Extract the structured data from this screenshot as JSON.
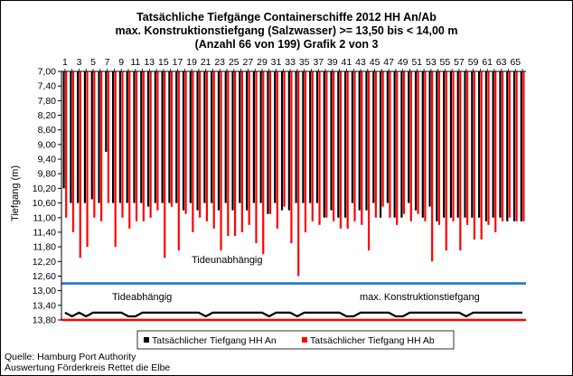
{
  "chart_data": {
    "type": "bar",
    "title_lines": [
      "Tatsächliche Tiefgänge Containerschiffe  2012 HH An/Ab",
      "max. Konstruktionstiefgang  (Salzwasser)  >= 13,50 bis < 14,00 m",
      "(Anzahl 66 von 199) Grafik 2 von 3"
    ],
    "ylabel": "Tiefgang (m)",
    "ylim": [
      7.0,
      13.8
    ],
    "y_inverted": true,
    "y_ticks": [
      "7,00",
      "7,40",
      "7,80",
      "8,20",
      "8,60",
      "9,00",
      "9,40",
      "9,80",
      "10,20",
      "10,60",
      "11,00",
      "11,40",
      "11,80",
      "12,20",
      "12,60",
      "13,00",
      "13,40",
      "13,80"
    ],
    "x_ticks": [
      "1",
      "3",
      "5",
      "7",
      "9",
      "11",
      "13",
      "15",
      "17",
      "19",
      "21",
      "23",
      "25",
      "27",
      "29",
      "31",
      "33",
      "35",
      "37",
      "39",
      "41",
      "43",
      "45",
      "47",
      "49",
      "51",
      "53",
      "55",
      "57",
      "59",
      "61",
      "63",
      "65"
    ],
    "categories": [
      1,
      2,
      3,
      4,
      5,
      6,
      7,
      8,
      9,
      10,
      11,
      12,
      13,
      14,
      15,
      16,
      17,
      18,
      19,
      20,
      21,
      22,
      23,
      24,
      25,
      26,
      27,
      28,
      29,
      30,
      31,
      32,
      33,
      34,
      35,
      36,
      37,
      38,
      39,
      40,
      41,
      42,
      43,
      44,
      45,
      46,
      47,
      48,
      49,
      50,
      51,
      52,
      53,
      54,
      55,
      56,
      57,
      58,
      59,
      60,
      61,
      62,
      63,
      64,
      65,
      66
    ],
    "series": [
      {
        "name": "Tatsächlicher Tiefgang HH An",
        "color": "#000000",
        "values": [
          10.2,
          10.6,
          10.6,
          10.6,
          10.5,
          10.6,
          9.2,
          10.6,
          10.6,
          10.6,
          10.6,
          10.6,
          10.7,
          10.6,
          10.6,
          10.6,
          10.6,
          10.8,
          10.6,
          10.8,
          10.6,
          10.6,
          10.8,
          10.6,
          10.8,
          10.6,
          10.8,
          10.6,
          10.6,
          10.9,
          10.6,
          10.8,
          10.8,
          10.6,
          10.6,
          10.6,
          10.6,
          11.0,
          10.8,
          11.0,
          11.0,
          10.6,
          10.8,
          10.8,
          10.6,
          11.0,
          10.6,
          11.0,
          11.0,
          10.6,
          10.8,
          11.0,
          10.7,
          11.1,
          11.0,
          11.0,
          11.0,
          11.0,
          11.0,
          11.0,
          11.1,
          11.0,
          11.0,
          11.1,
          11.1,
          11.1
        ]
      },
      {
        "name": "Tatsächlicher Tiefgang HH Ab",
        "color": "#ff0000",
        "values": [
          11.0,
          11.4,
          12.1,
          11.8,
          11.0,
          11.1,
          10.6,
          11.8,
          11.0,
          11.3,
          11.1,
          11.1,
          11.0,
          10.8,
          12.1,
          10.7,
          11.9,
          10.9,
          11.4,
          11.0,
          11.1,
          11.3,
          11.9,
          11.5,
          11.5,
          11.4,
          11.2,
          11.7,
          12.0,
          10.9,
          11.3,
          10.7,
          11.7,
          12.6,
          11.4,
          11.1,
          11.2,
          11.0,
          11.1,
          11.3,
          11.3,
          11.1,
          11.2,
          11.9,
          11.0,
          10.7,
          11.0,
          11.2,
          10.9,
          11.1,
          10.9,
          11.1,
          12.2,
          11.2,
          11.9,
          11.1,
          11.9,
          11.2,
          11.6,
          11.6,
          11.2,
          11.4,
          11.1,
          11.0,
          11.1,
          11.1
        ]
      }
    ],
    "reference_lines": [
      {
        "label": "Tideunabhängig",
        "value": 12.8,
        "color": "#1f7bbf"
      },
      {
        "label": "Tideabhängig",
        "color": "#000000",
        "values": [
          13.6,
          13.7,
          13.6,
          13.7,
          13.6,
          13.6,
          13.6,
          13.6,
          13.6,
          13.7,
          13.7,
          13.6,
          13.6,
          13.6,
          13.6,
          13.6,
          13.6,
          13.6,
          13.6,
          13.6,
          13.7,
          13.6,
          13.6,
          13.6,
          13.6,
          13.6,
          13.6,
          13.6,
          13.6,
          13.7,
          13.6,
          13.6,
          13.6,
          13.7,
          13.6,
          13.6,
          13.6,
          13.6,
          13.6,
          13.6,
          13.7,
          13.7,
          13.6,
          13.6,
          13.6,
          13.6,
          13.6,
          13.7,
          13.7,
          13.6,
          13.6,
          13.6,
          13.6,
          13.6,
          13.6,
          13.6,
          13.6,
          13.7,
          13.6,
          13.6,
          13.6,
          13.6,
          13.6,
          13.6,
          13.6,
          13.6
        ]
      },
      {
        "label": "max. Konstruktionstiefgang",
        "value": 13.8,
        "color": "#ff0000"
      }
    ],
    "legend_position": "bottom",
    "grid": false
  },
  "source_lines": [
    "Quelle: Hamburg Port Authority",
    "Auswertung Förderkreis Rettet die Elbe"
  ]
}
